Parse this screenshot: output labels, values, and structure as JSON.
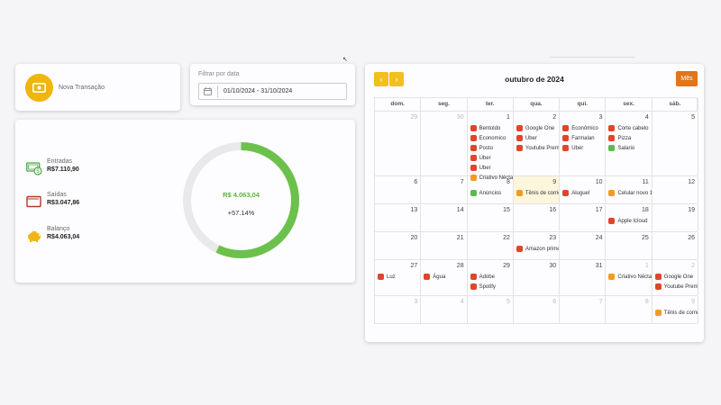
{
  "new_transaction": {
    "label": "Nova Transação"
  },
  "filter": {
    "label": "Filtrar por data",
    "date_range": "01/10/2024 - 31/10/2024"
  },
  "summary": {
    "entradas_label": "Entradas",
    "entradas_value": "R$7.110,90",
    "saidas_label": "Saídas",
    "saidas_value": "R$3.047,86",
    "balanco_label": "Balanço",
    "balanco_value": "R$4.063,04",
    "donut_total": "R$ 4.063,04",
    "donut_percent": "+57.14%",
    "donut_fraction": 0.5714
  },
  "colors": {
    "red": "#e0452b",
    "orange": "#f29b1d",
    "green": "#5cb94a",
    "yellow": "#f0b50f",
    "accent": "#e0751b"
  },
  "calendar": {
    "month_title": "outubro de 2024",
    "prev_icon": "‹",
    "next_icon": "›",
    "view_button": "Mês",
    "weekdays": [
      "dom.",
      "seg.",
      "ter.",
      "qua.",
      "qui.",
      "sex.",
      "sáb."
    ],
    "weeks": [
      {
        "days": [
          {
            "num": "29",
            "other": true,
            "events": []
          },
          {
            "num": "30",
            "other": true,
            "events": []
          },
          {
            "num": "1",
            "events": [
              {
                "label": "Bentoldo",
                "color": "red"
              },
              {
                "label": "Economico",
                "color": "red"
              },
              {
                "label": "Posto",
                "color": "red"
              },
              {
                "label": "Uber",
                "color": "red"
              },
              {
                "label": "Uber",
                "color": "red"
              },
              {
                "label": "Criativo Néctar",
                "color": "orange"
              }
            ]
          },
          {
            "num": "2",
            "events": [
              {
                "label": "Google One",
                "color": "red"
              },
              {
                "label": "Uber",
                "color": "red"
              },
              {
                "label": "Youtube Premium",
                "color": "red"
              }
            ]
          },
          {
            "num": "3",
            "events": [
              {
                "label": "Econômico",
                "color": "red"
              },
              {
                "label": "Farmalan",
                "color": "red"
              },
              {
                "label": "Uber",
                "color": "red"
              }
            ]
          },
          {
            "num": "4",
            "events": [
              {
                "label": "Corte cabelo",
                "color": "red"
              },
              {
                "label": "Pizza",
                "color": "red"
              },
              {
                "label": "Salario",
                "color": "green"
              }
            ]
          },
          {
            "num": "5",
            "events": []
          }
        ]
      },
      {
        "days": [
          {
            "num": "6",
            "events": []
          },
          {
            "num": "7",
            "events": []
          },
          {
            "num": "8",
            "events": [
              {
                "label": "Anúncios",
                "color": "green"
              }
            ]
          },
          {
            "num": "9",
            "today": true,
            "events": [
              {
                "label": "Tênis de corrida",
                "color": "orange"
              }
            ]
          },
          {
            "num": "10",
            "events": [
              {
                "label": "Aluguel",
                "color": "red"
              }
            ]
          },
          {
            "num": "11",
            "events": [
              {
                "label": "Celular novo 1/",
                "color": "orange"
              }
            ]
          },
          {
            "num": "12",
            "events": []
          }
        ]
      },
      {
        "days": [
          {
            "num": "13",
            "events": []
          },
          {
            "num": "14",
            "events": []
          },
          {
            "num": "15",
            "events": []
          },
          {
            "num": "16",
            "events": []
          },
          {
            "num": "17",
            "events": []
          },
          {
            "num": "18",
            "events": [
              {
                "label": "Apple Icloud",
                "color": "red"
              }
            ]
          },
          {
            "num": "19",
            "events": []
          }
        ]
      },
      {
        "days": [
          {
            "num": "20",
            "events": []
          },
          {
            "num": "21",
            "events": []
          },
          {
            "num": "22",
            "events": []
          },
          {
            "num": "23",
            "events": [
              {
                "label": "Amazon prime",
                "color": "red"
              }
            ]
          },
          {
            "num": "24",
            "events": []
          },
          {
            "num": "25",
            "events": []
          },
          {
            "num": "26",
            "events": []
          }
        ]
      },
      {
        "days": [
          {
            "num": "27",
            "events": [
              {
                "label": "Luz",
                "color": "red"
              }
            ]
          },
          {
            "num": "28",
            "events": [
              {
                "label": "Água",
                "color": "red"
              }
            ]
          },
          {
            "num": "29",
            "events": [
              {
                "label": "Adobe",
                "color": "red"
              },
              {
                "label": "Spotify",
                "color": "red"
              }
            ]
          },
          {
            "num": "30",
            "events": []
          },
          {
            "num": "31",
            "events": []
          },
          {
            "num": "1",
            "other": true,
            "events": [
              {
                "label": "Criativo Néctar",
                "color": "orange"
              }
            ]
          },
          {
            "num": "2",
            "other": true,
            "events": [
              {
                "label": "Google One",
                "color": "red"
              },
              {
                "label": "Youtube Premium",
                "color": "red"
              }
            ]
          }
        ]
      },
      {
        "days": [
          {
            "num": "3",
            "other": true,
            "events": []
          },
          {
            "num": "4",
            "other": true,
            "events": []
          },
          {
            "num": "5",
            "other": true,
            "events": []
          },
          {
            "num": "6",
            "other": true,
            "events": []
          },
          {
            "num": "7",
            "other": true,
            "events": []
          },
          {
            "num": "8",
            "other": true,
            "events": []
          },
          {
            "num": "9",
            "other": true,
            "events": [
              {
                "label": "Tênis de corrida",
                "color": "orange"
              }
            ]
          }
        ]
      }
    ]
  }
}
